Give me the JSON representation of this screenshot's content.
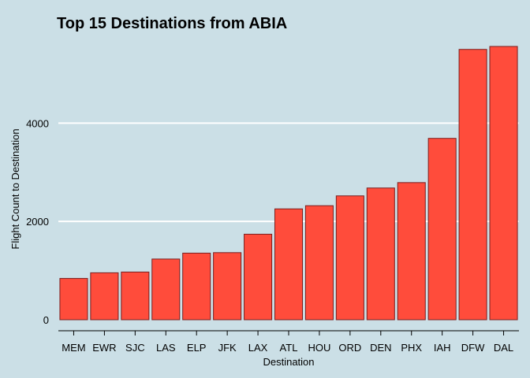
{
  "chart_data": {
    "type": "bar",
    "title": "Top 15 Destinations from ABIA",
    "xlabel": "Destination",
    "ylabel": "Flight Count to Destination",
    "categories": [
      "MEM",
      "EWR",
      "SJC",
      "LAS",
      "ELP",
      "JFK",
      "LAX",
      "ATL",
      "HOU",
      "ORD",
      "DEN",
      "PHX",
      "IAH",
      "DFW",
      "DAL"
    ],
    "values": [
      840,
      955,
      970,
      1235,
      1355,
      1365,
      1740,
      2255,
      2320,
      2520,
      2680,
      2790,
      3690,
      5500,
      5560
    ],
    "ylim": [
      0,
      5800
    ],
    "yticks": [
      0,
      2000,
      4000
    ],
    "grid": true,
    "colors": {
      "bar_fill": "#ff4c3b",
      "bar_stroke": "#7a1f1f",
      "background": "#cbdfe6",
      "grid": "#ffffff"
    }
  }
}
